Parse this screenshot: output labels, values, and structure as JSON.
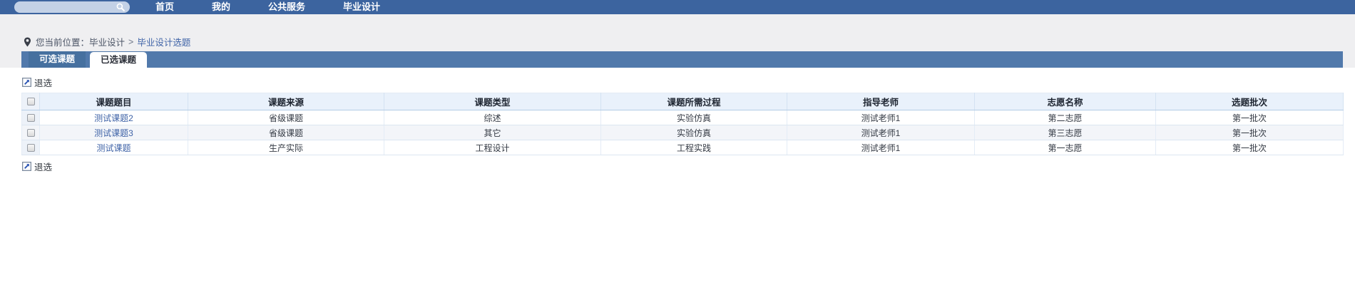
{
  "nav": {
    "search": {
      "value": "",
      "placeholder": ""
    },
    "items": [
      "首页",
      "我的",
      "公共服务",
      "毕业设计"
    ]
  },
  "breadcrumb": {
    "prefix": "您当前位置：",
    "section": "毕业设计",
    "separator": ">",
    "current": "毕业设计选题"
  },
  "tabs": [
    {
      "label": "可选课题",
      "active": false
    },
    {
      "label": "已选课题",
      "active": true
    }
  ],
  "toolbar": {
    "withdraw_label": "退选"
  },
  "table": {
    "headers": [
      "课题题目",
      "课题来源",
      "课题类型",
      "课题所需过程",
      "指导老师",
      "志愿名称",
      "选题批次"
    ],
    "rows": [
      [
        "测试课题2",
        "省级课题",
        "综述",
        "实验仿真",
        "测试老师1",
        "第二志愿",
        "第一批次"
      ],
      [
        "测试课题3",
        "省级课题",
        "其它",
        "实验仿真",
        "测试老师1",
        "第三志愿",
        "第一批次"
      ],
      [
        "测试课题",
        "生产实际",
        "工程设计",
        "工程实践",
        "测试老师1",
        "第一志愿",
        "第一批次"
      ]
    ]
  },
  "icons": [
    "search-icon",
    "location-pin-icon",
    "withdraw-arrow-icon",
    "checkbox"
  ],
  "colors": {
    "navbar": "#3c649f",
    "tabstrip": "#5179ab",
    "inactive_tab": "#46709f",
    "header_row_bg": "#e9f1fb",
    "alt_row_bg": "#f3f5f9",
    "link": "#3f63a7",
    "search_pill": "#c3d1e6"
  }
}
